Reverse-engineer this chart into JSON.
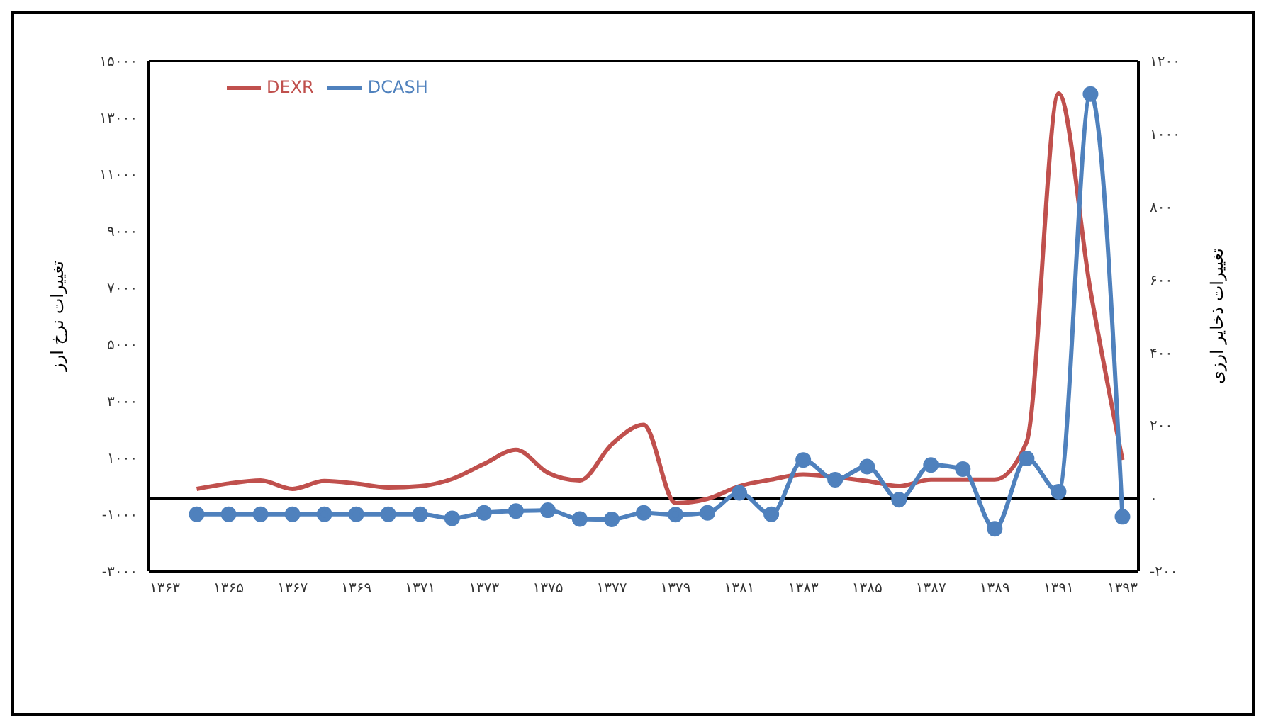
{
  "chart_data": {
    "type": "line",
    "ylabel": "تغییرات نرخ ارز",
    "y2label": "تغییرات ذخایر ارزی",
    "categories": [
      "۱۳۶۳",
      null,
      "۱۳۶۵",
      null,
      "۱۳۶۷",
      null,
      "۱۳۶۹",
      null,
      "۱۳۷۱",
      null,
      "۱۳۷۳",
      null,
      "۱۳۷۵",
      null,
      "۱۳۷۷",
      null,
      "۱۳۷۹",
      null,
      "۱۳۸۱",
      null,
      "۱۳۸۳",
      null,
      "۱۳۸۵",
      null,
      "۱۳۸۷",
      null,
      "۱۳۸۹",
      null,
      "۱۳۹۱",
      null,
      "۱۳۹۳"
    ],
    "series": [
      {
        "name": "DEXR",
        "color": "#c0504d",
        "marker": "none",
        "values": [
          null,
          -100,
          90,
          200,
          -100,
          180,
          90,
          -50,
          0,
          250,
          780,
          1280,
          470,
          200,
          1470,
          2160,
          -600,
          -450,
          0,
          230,
          410,
          320,
          180,
          0,
          230,
          230,
          230,
          1560,
          13850,
          6880,
          920
        ]
      },
      {
        "name": "DCASH",
        "color": "#4f81bd",
        "marker": "circle",
        "axis": "y2",
        "values": [
          null,
          -44,
          -44,
          -44,
          -44,
          -44,
          -44,
          -44,
          -44,
          -55,
          -40,
          -35,
          -33,
          -57,
          -58,
          -40,
          -45,
          -40,
          15,
          -44,
          105,
          51,
          87,
          -4,
          91,
          80,
          -84,
          109,
          18,
          1109,
          -51
        ]
      }
    ],
    "ylim": [
      -3000,
      15000
    ],
    "yticks": [
      {
        "value": -3000,
        "label": "-۳۰۰۰"
      },
      {
        "value": -1000,
        "label": "-۱۰۰۰"
      },
      {
        "value": 1000,
        "label": "۱۰۰۰"
      },
      {
        "value": 3000,
        "label": "۳۰۰۰"
      },
      {
        "value": 5000,
        "label": "۵۰۰۰"
      },
      {
        "value": 7000,
        "label": "۷۰۰۰"
      },
      {
        "value": 9000,
        "label": "۹۰۰۰"
      },
      {
        "value": 11000,
        "label": "۱۱۰۰۰"
      },
      {
        "value": 13000,
        "label": "۱۳۰۰۰"
      },
      {
        "value": 15000,
        "label": "۱۵۰۰۰"
      }
    ],
    "y2lim": [
      -200,
      1200
    ],
    "y2ticks": [
      {
        "value": -200,
        "label": "-۲۰۰"
      },
      {
        "value": 0,
        "label": "۰"
      },
      {
        "value": 200,
        "label": "۲۰۰"
      },
      {
        "value": 400,
        "label": "۴۰۰"
      },
      {
        "value": 600,
        "label": "۶۰۰"
      },
      {
        "value": 800,
        "label": "۸۰۰"
      },
      {
        "value": 1000,
        "label": "۱۰۰۰"
      },
      {
        "value": 1200,
        "label": "۱۲۰۰"
      }
    ],
    "ref_lines": [
      {
        "axis": "y2",
        "value": 0,
        "color": "#000000"
      }
    ],
    "legend": "top left"
  }
}
